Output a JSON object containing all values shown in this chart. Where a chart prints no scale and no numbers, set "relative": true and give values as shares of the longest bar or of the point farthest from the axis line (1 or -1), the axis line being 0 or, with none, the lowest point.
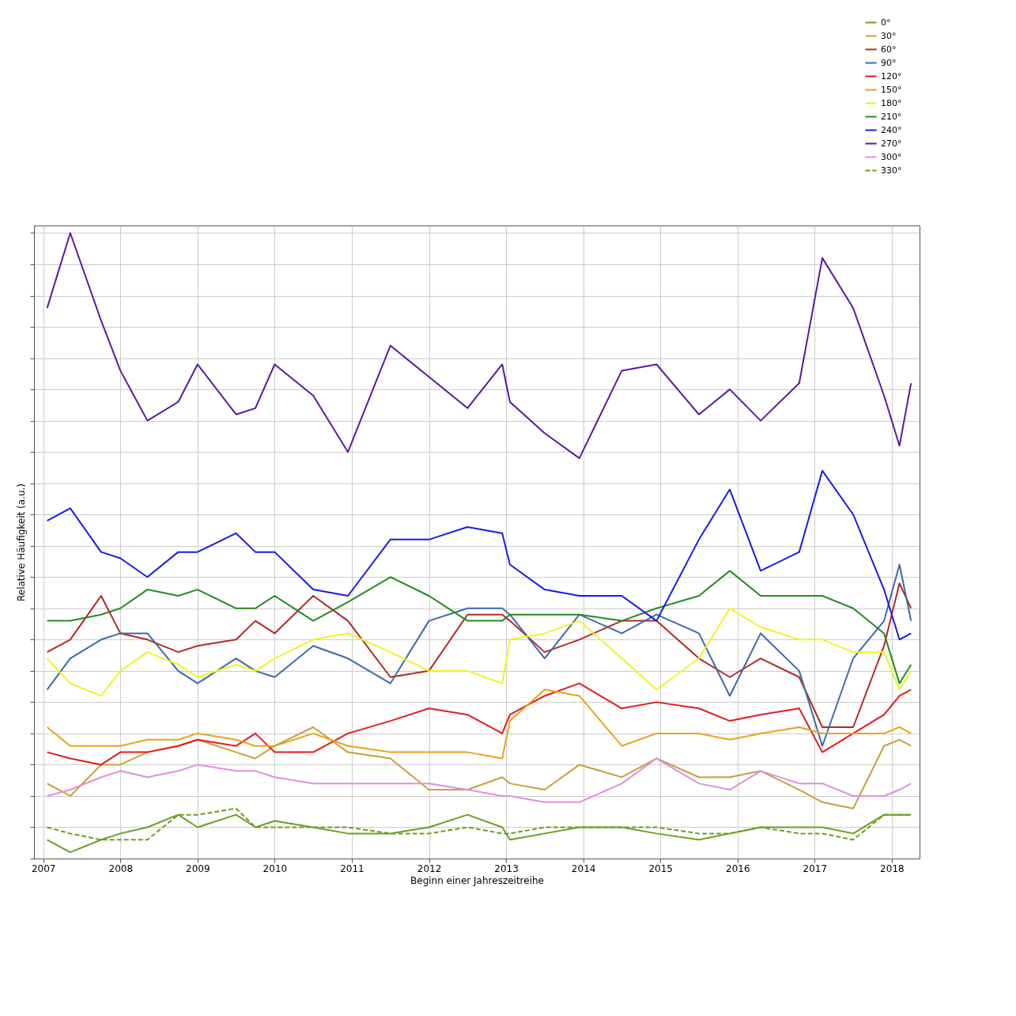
{
  "chart_data": {
    "type": "line",
    "relative": true,
    "xlabel": "Beginn einer Jahreszeitreihe",
    "ylabel": "Relative Häufigkeit (a.u.)",
    "x": [
      2007.05,
      2007.35,
      2007.75,
      2008.0,
      2008.35,
      2008.75,
      2009.0,
      2009.5,
      2009.75,
      2010.0,
      2010.5,
      2010.95,
      2011.5,
      2012.0,
      2012.5,
      2012.95,
      2013.05,
      2013.5,
      2013.95,
      2014.5,
      2014.95,
      2015.5,
      2015.9,
      2016.3,
      2016.8,
      2017.1,
      2017.5,
      2017.9,
      2018.1,
      2018.25
    ],
    "xlim": [
      2006.88,
      2018.36
    ],
    "xticks": [
      2007,
      2008,
      2009,
      2010,
      2011,
      2012,
      2013,
      2014,
      2015,
      2016,
      2017,
      2018
    ],
    "grid": true,
    "legend": "top right",
    "marker": "none",
    "line_style": "solid",
    "series": [
      {
        "name": "0°",
        "color": "#6b9e1f",
        "values": [
          0.03,
          0.01,
          0.03,
          0.04,
          0.05,
          0.07,
          0.05,
          0.07,
          0.05,
          0.06,
          0.05,
          0.04,
          0.04,
          0.05,
          0.07,
          0.05,
          0.03,
          0.04,
          0.05,
          0.05,
          0.04,
          0.03,
          0.04,
          0.05,
          0.05,
          0.05,
          0.04,
          0.07,
          0.07,
          0.07
        ]
      },
      {
        "name": "30°",
        "color": "#c8a03c",
        "values": [
          0.12,
          0.1,
          0.15,
          0.15,
          0.17,
          0.18,
          0.19,
          0.17,
          0.16,
          0.18,
          0.21,
          0.17,
          0.16,
          0.11,
          0.11,
          0.13,
          0.12,
          0.11,
          0.15,
          0.13,
          0.16,
          0.13,
          0.13,
          0.14,
          0.11,
          0.09,
          0.08,
          0.18,
          0.19,
          0.18
        ]
      },
      {
        "name": "60°",
        "color": "#b22a22",
        "values": [
          0.33,
          0.35,
          0.42,
          0.36,
          0.35,
          0.33,
          0.34,
          0.35,
          0.38,
          0.36,
          0.42,
          0.38,
          0.29,
          0.3,
          0.39,
          0.39,
          0.38,
          0.33,
          0.35,
          0.38,
          0.38,
          0.32,
          0.29,
          0.32,
          0.29,
          0.21,
          0.21,
          0.34,
          0.44,
          0.4
        ]
      },
      {
        "name": "90°",
        "color": "#3d6aa8",
        "values": [
          0.27,
          0.32,
          0.35,
          0.36,
          0.36,
          0.3,
          0.28,
          0.32,
          0.3,
          0.29,
          0.34,
          0.32,
          0.28,
          0.38,
          0.4,
          0.4,
          0.39,
          0.32,
          0.39,
          0.36,
          0.39,
          0.36,
          0.26,
          0.36,
          0.3,
          0.18,
          0.32,
          0.38,
          0.47,
          0.38
        ]
      },
      {
        "name": "120°",
        "color": "#e31a1c",
        "values": [
          0.17,
          0.16,
          0.15,
          0.17,
          0.17,
          0.18,
          0.19,
          0.18,
          0.2,
          0.17,
          0.17,
          0.2,
          0.22,
          0.24,
          0.23,
          0.2,
          0.23,
          0.26,
          0.28,
          0.24,
          0.25,
          0.24,
          0.22,
          0.23,
          0.24,
          0.17,
          0.2,
          0.23,
          0.26,
          0.27
        ]
      },
      {
        "name": "150°",
        "color": "#e8a317",
        "values": [
          0.21,
          0.18,
          0.18,
          0.18,
          0.19,
          0.19,
          0.2,
          0.19,
          0.18,
          0.18,
          0.2,
          0.18,
          0.17,
          0.17,
          0.17,
          0.16,
          0.22,
          0.27,
          0.26,
          0.18,
          0.2,
          0.2,
          0.19,
          0.2,
          0.21,
          0.2,
          0.2,
          0.2,
          0.21,
          0.2
        ]
      },
      {
        "name": "180°",
        "color": "#f2f224",
        "values": [
          0.32,
          0.28,
          0.26,
          0.3,
          0.33,
          0.31,
          0.29,
          0.31,
          0.3,
          0.32,
          0.35,
          0.36,
          0.33,
          0.3,
          0.3,
          0.28,
          0.35,
          0.36,
          0.38,
          0.32,
          0.27,
          0.32,
          0.4,
          0.37,
          0.35,
          0.35,
          0.33,
          0.33,
          0.27,
          0.3
        ]
      },
      {
        "name": "210°",
        "color": "#228b22",
        "values": [
          0.38,
          0.38,
          0.39,
          0.4,
          0.43,
          0.42,
          0.43,
          0.4,
          0.4,
          0.42,
          0.38,
          0.41,
          0.45,
          0.42,
          0.38,
          0.38,
          0.39,
          0.39,
          0.39,
          0.38,
          0.4,
          0.42,
          0.46,
          0.42,
          0.42,
          0.42,
          0.4,
          0.36,
          0.28,
          0.31
        ]
      },
      {
        "name": "240°",
        "color": "#1a1ae6",
        "values": [
          0.54,
          0.56,
          0.49,
          0.48,
          0.45,
          0.49,
          0.49,
          0.52,
          0.49,
          0.49,
          0.43,
          0.42,
          0.51,
          0.51,
          0.53,
          0.52,
          0.47,
          0.43,
          0.42,
          0.42,
          0.38,
          0.51,
          0.59,
          0.46,
          0.49,
          0.62,
          0.55,
          0.43,
          0.35,
          0.36
        ]
      },
      {
        "name": "270°",
        "color": "#5b1a9e",
        "values": [
          0.88,
          1.0,
          0.86,
          0.78,
          0.7,
          0.73,
          0.79,
          0.71,
          0.72,
          0.79,
          0.74,
          0.65,
          0.82,
          0.77,
          0.72,
          0.79,
          0.73,
          0.68,
          0.64,
          0.78,
          0.79,
          0.71,
          0.75,
          0.7,
          0.76,
          0.96,
          0.88,
          0.74,
          0.66,
          0.76
        ]
      },
      {
        "name": "300°",
        "color": "#e08de0",
        "values": [
          0.1,
          0.11,
          0.13,
          0.14,
          0.13,
          0.14,
          0.15,
          0.14,
          0.14,
          0.13,
          0.12,
          0.12,
          0.12,
          0.12,
          0.11,
          0.1,
          0.1,
          0.09,
          0.09,
          0.12,
          0.16,
          0.12,
          0.11,
          0.14,
          0.12,
          0.12,
          0.1,
          0.1,
          0.11,
          0.12
        ]
      },
      {
        "name": "330°",
        "color": "#6b9e1f",
        "line_style": "dashed",
        "values": [
          0.05,
          0.04,
          0.03,
          0.03,
          0.03,
          0.07,
          0.07,
          0.08,
          0.05,
          0.05,
          0.05,
          0.05,
          0.04,
          0.04,
          0.05,
          0.04,
          0.04,
          0.05,
          0.05,
          0.05,
          0.05,
          0.04,
          0.04,
          0.05,
          0.04,
          0.04,
          0.03,
          0.07,
          0.07,
          0.07
        ]
      }
    ]
  }
}
